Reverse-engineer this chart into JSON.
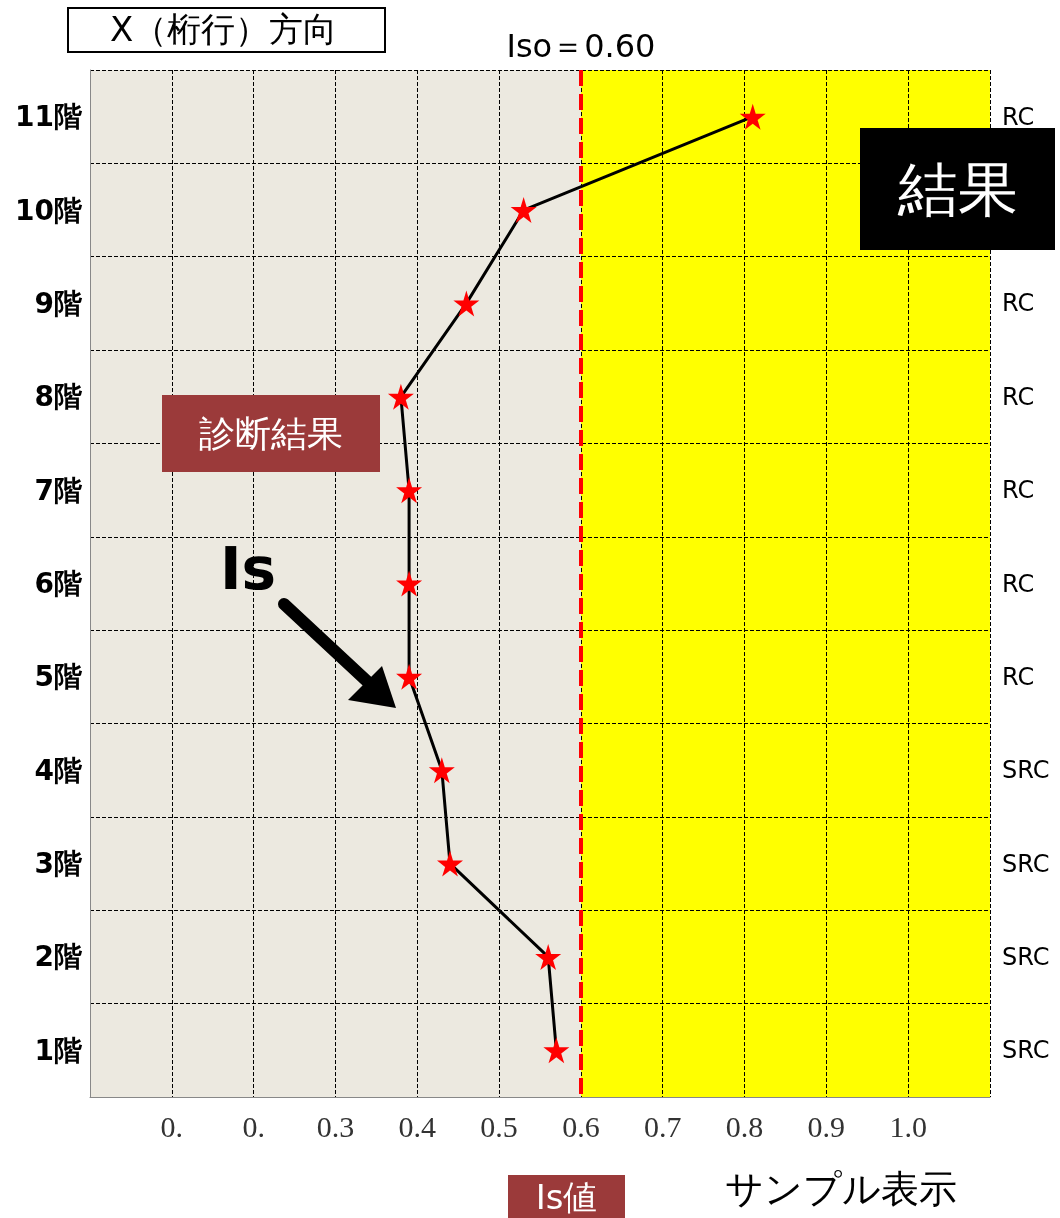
{
  "chart_data": {
    "type": "line",
    "orientation": "horizontal",
    "title": "X（桁行）方向",
    "categories": [
      "11階",
      "10階",
      "9階",
      "8階",
      "7階",
      "6階",
      "5階",
      "4階",
      "3階",
      "2階",
      "1階"
    ],
    "series": [
      {
        "color": "#000000",
        "colors": [
          "#ff0000",
          "#ff0000",
          "#ff0000",
          "#ff0000",
          "#ff0000",
          "#ff0000",
          "#ff0000",
          "#ff0000",
          "#ff0000",
          "#ff0000",
          "#ff0000"
        ],
        "values": [
          0.81,
          0.53,
          0.46,
          0.38,
          0.39,
          0.39,
          0.39,
          0.43,
          0.44,
          0.56,
          0.57
        ]
      }
    ],
    "xlim": [
      0,
      1.1
    ],
    "xticks": [
      {
        "value": 0,
        "label": null
      },
      {
        "value": 0.1,
        "label": "0."
      },
      {
        "value": 0.2,
        "label": "0."
      },
      0.3,
      0.4,
      0.5,
      0.6,
      0.7,
      0.8,
      0.9,
      {
        "value": 1,
        "label": "1.0"
      },
      {
        "value": 1.1,
        "label": null
      }
    ],
    "bands": [
      {
        "axis": "x",
        "from": 0,
        "to": 0.6,
        "color": "#ece9e0"
      },
      {
        "axis": "x",
        "from": 0.6,
        "to": 1.1,
        "color": "#ffff00"
      }
    ],
    "ref_lines": [
      {
        "axis": "x",
        "value": 0.6,
        "label": "Iso＝0.60",
        "color": "#ff0000",
        "line_style": "dashed"
      }
    ],
    "annotations": [
      "RC",
      "RC",
      "RC",
      "RC",
      "RC",
      "RC",
      "SRC",
      "SRC",
      "SRC",
      "SRC",
      "Is",
      "診断結果",
      "結果",
      "Is値",
      "サンプル表示"
    ],
    "grid": true,
    "marker": "star",
    "line_style": "solid"
  }
}
